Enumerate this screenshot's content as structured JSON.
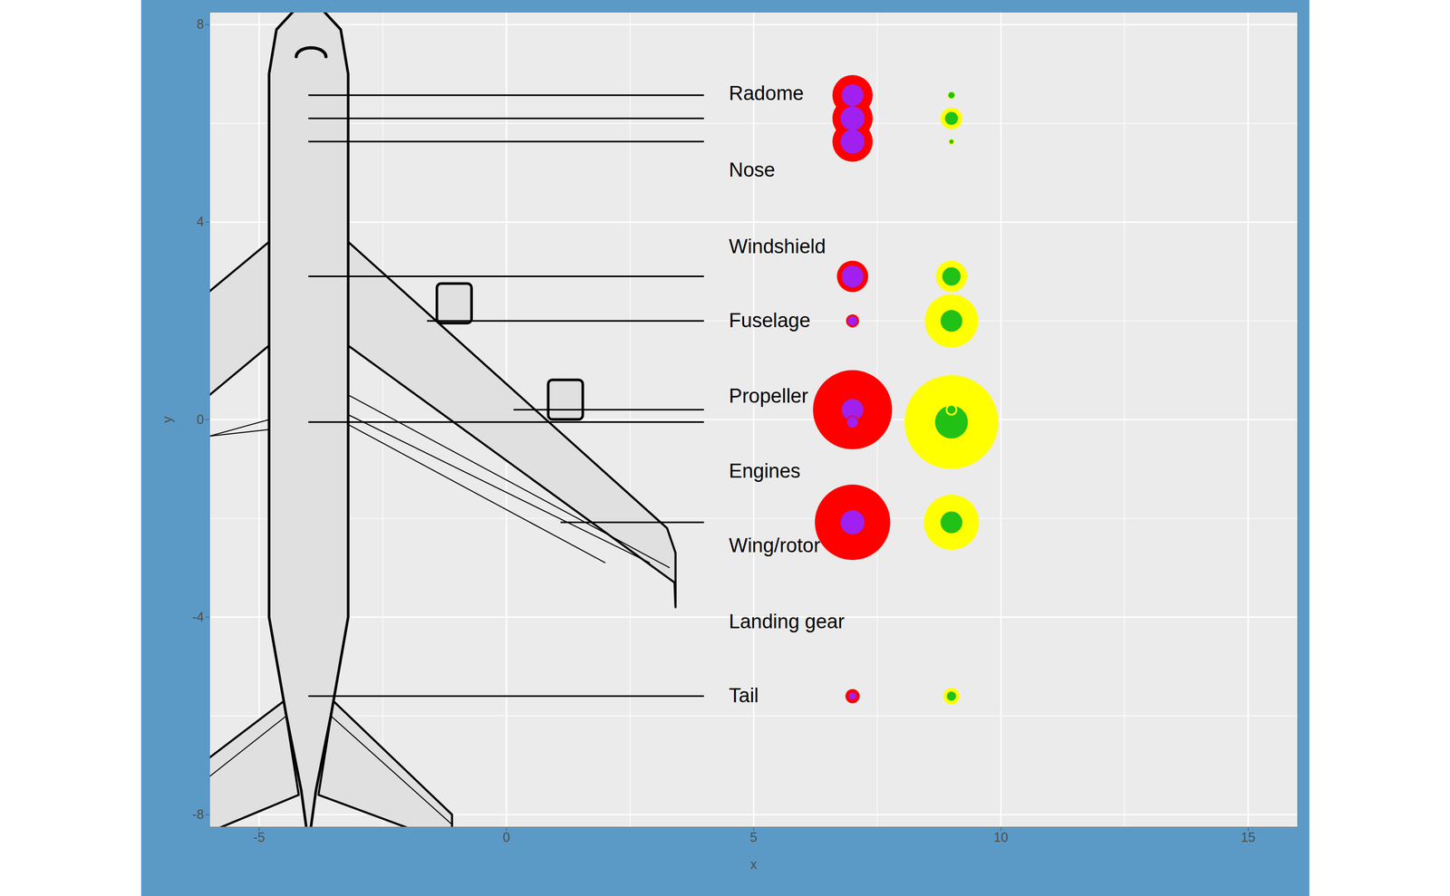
{
  "chart_data": {
    "type": "bubble",
    "x_label": "x",
    "y_label": "y",
    "xlim": [
      -6,
      16
    ],
    "ylim": [
      -8.25,
      8.25
    ],
    "xticks": [
      -5,
      0,
      5,
      10,
      15
    ],
    "yticks": [
      -8,
      -4,
      0,
      4,
      8
    ],
    "grid": true,
    "labels": [
      {
        "text": "Radome",
        "x": 4.5,
        "y": 6.6
      },
      {
        "text": "Nose",
        "x": 4.5,
        "y": 5.05
      },
      {
        "text": "Windshield",
        "x": 4.5,
        "y": 3.5
      },
      {
        "text": "Fuselage",
        "x": 4.5,
        "y": 2.0
      },
      {
        "text": "Propeller",
        "x": 4.5,
        "y": 0.47
      },
      {
        "text": "Engines",
        "x": 4.5,
        "y": -1.05
      },
      {
        "text": "Wing/rotor",
        "x": 4.5,
        "y": -2.56
      },
      {
        "text": "Landing gear",
        "x": 4.5,
        "y": -4.1
      },
      {
        "text": "Tail",
        "x": 4.5,
        "y": -5.6
      }
    ],
    "segments": [
      {
        "x1": -4,
        "x2": 4,
        "y": 6.57
      },
      {
        "x1": -4,
        "x2": 4,
        "y": 6.1
      },
      {
        "x1": -4,
        "x2": 4,
        "y": 5.63
      },
      {
        "x1": -4,
        "x2": 4,
        "y": 2.9
      },
      {
        "x1": -1.6,
        "x2": 4,
        "y": 2.0
      },
      {
        "x1": 0.15,
        "x2": 4,
        "y": 0.2
      },
      {
        "x1": -4,
        "x2": 4,
        "y": -0.05
      },
      {
        "x1": 1.1,
        "x2": 4,
        "y": -2.08
      },
      {
        "x1": -4,
        "x2": 4,
        "y": -5.6
      }
    ],
    "series": [
      {
        "color": "#FF0000",
        "x": 7,
        "y": [
          6.57,
          6.1,
          5.63,
          2.9,
          2.0,
          0.2,
          -0.05,
          -2.08,
          -5.6
        ],
        "size": [
          48,
          48,
          48,
          29,
          5,
          185,
          5,
          168,
          6
        ]
      },
      {
        "color": "#A020F0",
        "x": 7,
        "y": [
          6.57,
          6.1,
          5.63,
          2.9,
          2.0,
          0.2,
          -0.05,
          -2.08,
          -5.6
        ],
        "size": [
          14,
          17,
          17,
          14,
          2.5,
          14,
          3.6,
          17,
          1.6
        ]
      },
      {
        "color": "#FFFF00",
        "x": 9,
        "y": [
          6.57,
          6.1,
          5.63,
          2.9,
          2.0,
          0.2,
          -0.05,
          -2.08,
          -5.6
        ],
        "size": [
          1.6,
          14,
          1,
          29,
          84,
          4,
          260,
          90,
          8
        ]
      },
      {
        "color": "#22C116",
        "x": 9,
        "y": [
          6.57,
          6.1,
          5.63,
          2.9,
          2.0,
          0.2,
          -0.05,
          -2.08,
          -5.6
        ],
        "size": [
          1.2,
          5,
          0.5,
          10,
          14,
          2,
          32,
          14,
          2.5
        ]
      }
    ]
  }
}
